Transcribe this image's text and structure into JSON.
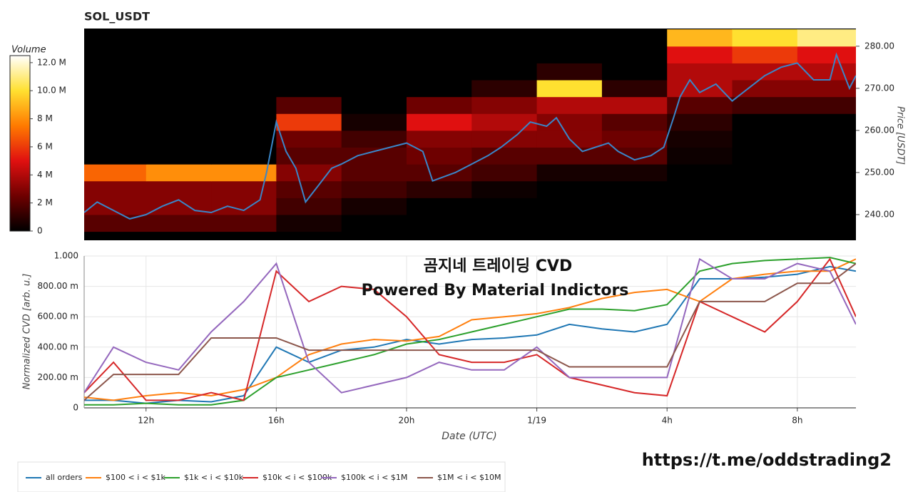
{
  "chart_data": [
    {
      "type": "heatmap",
      "title": "SOL_USDT",
      "x_bins": [
        10,
        12,
        14,
        16,
        18,
        20,
        22,
        24,
        26,
        28,
        30,
        32,
        34
      ],
      "y_bins": [
        236,
        240,
        244,
        248,
        252,
        256,
        260,
        264,
        268,
        272,
        276,
        280,
        284
      ],
      "z": [
        [
          2,
          2,
          2,
          0.5,
          0,
          0,
          0,
          0,
          0,
          0,
          0,
          0
        ],
        [
          3,
          3,
          3,
          1.5,
          0.5,
          0,
          0,
          0,
          0,
          0,
          0,
          0
        ],
        [
          3,
          3,
          3,
          2,
          1.5,
          1,
          0.3,
          0,
          0,
          0,
          0,
          0
        ],
        [
          7,
          8,
          8,
          3,
          2,
          2,
          1.5,
          0.5,
          0.5,
          0,
          0,
          0
        ],
        [
          0,
          0,
          0,
          2,
          2,
          2.5,
          2,
          2,
          2,
          0.3,
          0,
          0
        ],
        [
          0,
          0,
          0,
          2.5,
          1.5,
          3,
          3,
          3,
          2.5,
          0.5,
          0,
          0
        ],
        [
          0,
          0,
          0,
          6,
          0.5,
          5,
          4,
          3,
          2,
          1,
          0,
          0
        ],
        [
          0,
          0,
          0,
          2,
          0,
          2.5,
          3,
          4,
          4,
          2,
          1.5,
          1.5
        ],
        [
          0,
          0,
          0,
          0,
          0,
          0,
          1,
          10,
          1,
          4,
          3,
          3
        ],
        [
          0,
          0,
          0,
          0,
          0,
          0,
          0,
          1,
          0,
          4,
          4,
          4
        ],
        [
          0,
          0,
          0,
          0,
          0,
          0,
          0,
          0,
          0,
          5,
          6,
          5
        ],
        [
          0,
          0,
          0,
          0,
          0,
          0,
          0,
          0,
          0,
          9,
          10,
          11
        ]
      ],
      "colorscale": [
        "#000000",
        "#6e0000",
        "#e01010",
        "#ff7a00",
        "#ffe030",
        "#ffffff"
      ],
      "colorbar": {
        "title": "Volume",
        "zlim": [
          0,
          12.5
        ],
        "ticks": [
          0,
          {
            "value": 2,
            "label": "2 M"
          },
          {
            "value": 4,
            "label": "4 M"
          },
          {
            "value": 6,
            "label": "6 M"
          },
          {
            "value": 8,
            "label": "8 M"
          },
          {
            "value": 10,
            "label": "10.0 M"
          },
          {
            "value": 12,
            "label": "12.0 M"
          }
        ]
      },
      "xlim": [
        10.1,
        33.8
      ],
      "x": [
        10.1,
        10.5,
        11,
        11.5,
        12,
        12.5,
        13,
        13.5,
        14,
        14.5,
        15,
        15.5,
        15.7,
        16,
        16.3,
        16.6,
        16.9,
        17.3,
        17.7,
        18,
        18.5,
        19,
        19.5,
        20,
        20.5,
        20.8,
        21.5,
        22,
        22.5,
        22.9,
        23.4,
        23.8,
        24.3,
        24.6,
        25,
        25.4,
        25.8,
        26.2,
        26.5,
        27,
        27.5,
        27.9,
        28.2,
        28.4,
        28.7,
        29,
        29.5,
        30,
        30.5,
        31,
        31.5,
        32,
        32.5,
        33,
        33.2,
        33.6,
        33.8
      ],
      "series": [
        {
          "color": "#3a86c8",
          "axis": "y2",
          "values": [
            240.5,
            243,
            241,
            239,
            240,
            242,
            243.5,
            241,
            240.5,
            242,
            241,
            243.5,
            250,
            262,
            255,
            251,
            243,
            247,
            251,
            252,
            254,
            255,
            256,
            257,
            255,
            248,
            250,
            252,
            254,
            256,
            259,
            262,
            261,
            263,
            258,
            255,
            256,
            257,
            255,
            253,
            254,
            256,
            263,
            268,
            272,
            269,
            271,
            267,
            270,
            273,
            275,
            276,
            272,
            272,
            278,
            270,
            273
          ]
        }
      ],
      "y2lim": [
        233.9,
        284.2
      ],
      "y2ticks": [
        {
          "value": 240,
          "label": "240.00"
        },
        {
          "value": 250,
          "label": "250.00"
        },
        {
          "value": 260,
          "label": "260.00"
        },
        {
          "value": 270,
          "label": "270.00"
        },
        {
          "value": 280,
          "label": "280.00"
        }
      ],
      "y2label": "Price [USDT]"
    },
    {
      "type": "line",
      "annotations": [
        "곰지네 트레이딩 CVD",
        "Powered By Material Indictors",
        "https://t.me/oddstrading2"
      ],
      "xlabel": "Date (UTC)",
      "ylabel": "Normalized CVD [arb. u.]",
      "xlim": [
        10.1,
        33.8
      ],
      "xticks": [
        {
          "value": 12,
          "label": "12h"
        },
        {
          "value": 16,
          "label": "16h"
        },
        {
          "value": 20,
          "label": "20h"
        },
        {
          "value": 24,
          "label": "1/19"
        },
        {
          "value": 28,
          "label": "4h"
        },
        {
          "value": 32,
          "label": "8h"
        }
      ],
      "ylim": [
        0,
        1
      ],
      "yticks": [
        0,
        {
          "value": 0.2,
          "label": "200.00 m"
        },
        {
          "value": 0.4,
          "label": "400.00 m"
        },
        {
          "value": 0.6,
          "label": "600.00 m"
        },
        {
          "value": 0.8,
          "label": "800.00 m"
        },
        {
          "value": 1,
          "label": "1.000"
        }
      ],
      "grid": true,
      "x": [
        10.1,
        11,
        12,
        13,
        14,
        15,
        16,
        17,
        18,
        19,
        20,
        21,
        22,
        23,
        24,
        25,
        26,
        27,
        28,
        29,
        30,
        31,
        32,
        33,
        33.8
      ],
      "series": [
        {
          "name": "all orders",
          "color": "#1f77b4",
          "values": [
            0.05,
            0.05,
            0.03,
            0.05,
            0.04,
            0.08,
            0.4,
            0.3,
            0.38,
            0.4,
            0.45,
            0.42,
            0.45,
            0.46,
            0.48,
            0.55,
            0.52,
            0.5,
            0.55,
            0.85,
            0.85,
            0.86,
            0.88,
            0.93,
            0.9
          ]
        },
        {
          "name": "$100 < i < $1k",
          "color": "#ff7f0e",
          "values": [
            0.07,
            0.05,
            0.08,
            0.1,
            0.08,
            0.12,
            0.2,
            0.35,
            0.42,
            0.45,
            0.44,
            0.47,
            0.58,
            0.6,
            0.62,
            0.66,
            0.72,
            0.76,
            0.78,
            0.7,
            0.85,
            0.88,
            0.9,
            0.9,
            0.98
          ]
        },
        {
          "name": "$1k < i < $10k",
          "color": "#2ca02c",
          "values": [
            0.02,
            0.02,
            0.03,
            0.02,
            0.02,
            0.05,
            0.2,
            0.25,
            0.3,
            0.35,
            0.42,
            0.45,
            0.5,
            0.55,
            0.6,
            0.65,
            0.65,
            0.64,
            0.68,
            0.9,
            0.95,
            0.97,
            0.98,
            0.99,
            0.95
          ]
        },
        {
          "name": "$10k < i < $100k",
          "color": "#d62728",
          "values": [
            0.1,
            0.3,
            0.05,
            0.05,
            0.1,
            0.05,
            0.9,
            0.7,
            0.8,
            0.78,
            0.6,
            0.35,
            0.3,
            0.3,
            0.35,
            0.2,
            0.15,
            0.1,
            0.08,
            0.7,
            0.6,
            0.5,
            0.7,
            0.98,
            0.6
          ]
        },
        {
          "name": "$100k < i < $1M",
          "color": "#9467bd",
          "values": [
            0.1,
            0.4,
            0.3,
            0.25,
            0.5,
            0.7,
            0.95,
            0.3,
            0.1,
            0.15,
            0.2,
            0.3,
            0.25,
            0.25,
            0.4,
            0.2,
            0.2,
            0.2,
            0.2,
            0.98,
            0.85,
            0.85,
            0.95,
            0.9,
            0.55
          ]
        },
        {
          "name": "$1M < i < $10M",
          "color": "#8c564b",
          "values": [
            0.05,
            0.22,
            0.22,
            0.22,
            0.46,
            0.46,
            0.46,
            0.38,
            0.38,
            0.38,
            0.38,
            0.38,
            0.38,
            0.38,
            0.38,
            0.27,
            0.27,
            0.27,
            0.27,
            0.7,
            0.7,
            0.7,
            0.82,
            0.82,
            0.95
          ]
        }
      ]
    }
  ]
}
